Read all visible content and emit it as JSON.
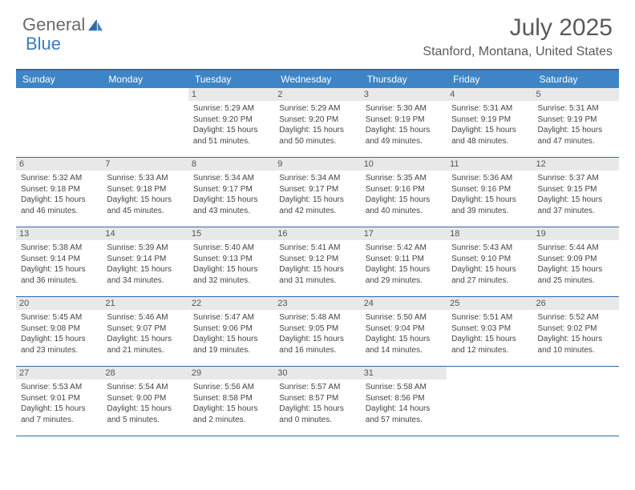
{
  "brand": {
    "general": "General",
    "blue": "Blue"
  },
  "title": "July 2025",
  "location": "Stanford, Montana, United States",
  "colors": {
    "header_bg": "#3d85c6",
    "border": "#2f6aa8",
    "daynum_bg": "#e8e8e8",
    "text": "#444444",
    "title_text": "#5a5a5a"
  },
  "weekdays": [
    "Sunday",
    "Monday",
    "Tuesday",
    "Wednesday",
    "Thursday",
    "Friday",
    "Saturday"
  ],
  "weeks": [
    [
      null,
      null,
      {
        "n": "1",
        "sr": "5:29 AM",
        "ss": "9:20 PM",
        "dl": "15 hours and 51 minutes."
      },
      {
        "n": "2",
        "sr": "5:29 AM",
        "ss": "9:20 PM",
        "dl": "15 hours and 50 minutes."
      },
      {
        "n": "3",
        "sr": "5:30 AM",
        "ss": "9:19 PM",
        "dl": "15 hours and 49 minutes."
      },
      {
        "n": "4",
        "sr": "5:31 AM",
        "ss": "9:19 PM",
        "dl": "15 hours and 48 minutes."
      },
      {
        "n": "5",
        "sr": "5:31 AM",
        "ss": "9:19 PM",
        "dl": "15 hours and 47 minutes."
      }
    ],
    [
      {
        "n": "6",
        "sr": "5:32 AM",
        "ss": "9:18 PM",
        "dl": "15 hours and 46 minutes."
      },
      {
        "n": "7",
        "sr": "5:33 AM",
        "ss": "9:18 PM",
        "dl": "15 hours and 45 minutes."
      },
      {
        "n": "8",
        "sr": "5:34 AM",
        "ss": "9:17 PM",
        "dl": "15 hours and 43 minutes."
      },
      {
        "n": "9",
        "sr": "5:34 AM",
        "ss": "9:17 PM",
        "dl": "15 hours and 42 minutes."
      },
      {
        "n": "10",
        "sr": "5:35 AM",
        "ss": "9:16 PM",
        "dl": "15 hours and 40 minutes."
      },
      {
        "n": "11",
        "sr": "5:36 AM",
        "ss": "9:16 PM",
        "dl": "15 hours and 39 minutes."
      },
      {
        "n": "12",
        "sr": "5:37 AM",
        "ss": "9:15 PM",
        "dl": "15 hours and 37 minutes."
      }
    ],
    [
      {
        "n": "13",
        "sr": "5:38 AM",
        "ss": "9:14 PM",
        "dl": "15 hours and 36 minutes."
      },
      {
        "n": "14",
        "sr": "5:39 AM",
        "ss": "9:14 PM",
        "dl": "15 hours and 34 minutes."
      },
      {
        "n": "15",
        "sr": "5:40 AM",
        "ss": "9:13 PM",
        "dl": "15 hours and 32 minutes."
      },
      {
        "n": "16",
        "sr": "5:41 AM",
        "ss": "9:12 PM",
        "dl": "15 hours and 31 minutes."
      },
      {
        "n": "17",
        "sr": "5:42 AM",
        "ss": "9:11 PM",
        "dl": "15 hours and 29 minutes."
      },
      {
        "n": "18",
        "sr": "5:43 AM",
        "ss": "9:10 PM",
        "dl": "15 hours and 27 minutes."
      },
      {
        "n": "19",
        "sr": "5:44 AM",
        "ss": "9:09 PM",
        "dl": "15 hours and 25 minutes."
      }
    ],
    [
      {
        "n": "20",
        "sr": "5:45 AM",
        "ss": "9:08 PM",
        "dl": "15 hours and 23 minutes."
      },
      {
        "n": "21",
        "sr": "5:46 AM",
        "ss": "9:07 PM",
        "dl": "15 hours and 21 minutes."
      },
      {
        "n": "22",
        "sr": "5:47 AM",
        "ss": "9:06 PM",
        "dl": "15 hours and 19 minutes."
      },
      {
        "n": "23",
        "sr": "5:48 AM",
        "ss": "9:05 PM",
        "dl": "15 hours and 16 minutes."
      },
      {
        "n": "24",
        "sr": "5:50 AM",
        "ss": "9:04 PM",
        "dl": "15 hours and 14 minutes."
      },
      {
        "n": "25",
        "sr": "5:51 AM",
        "ss": "9:03 PM",
        "dl": "15 hours and 12 minutes."
      },
      {
        "n": "26",
        "sr": "5:52 AM",
        "ss": "9:02 PM",
        "dl": "15 hours and 10 minutes."
      }
    ],
    [
      {
        "n": "27",
        "sr": "5:53 AM",
        "ss": "9:01 PM",
        "dl": "15 hours and 7 minutes."
      },
      {
        "n": "28",
        "sr": "5:54 AM",
        "ss": "9:00 PM",
        "dl": "15 hours and 5 minutes."
      },
      {
        "n": "29",
        "sr": "5:56 AM",
        "ss": "8:58 PM",
        "dl": "15 hours and 2 minutes."
      },
      {
        "n": "30",
        "sr": "5:57 AM",
        "ss": "8:57 PM",
        "dl": "15 hours and 0 minutes."
      },
      {
        "n": "31",
        "sr": "5:58 AM",
        "ss": "8:56 PM",
        "dl": "14 hours and 57 minutes."
      },
      null,
      null
    ]
  ],
  "labels": {
    "sunrise": "Sunrise: ",
    "sunset": "Sunset: ",
    "daylight": "Daylight: "
  }
}
